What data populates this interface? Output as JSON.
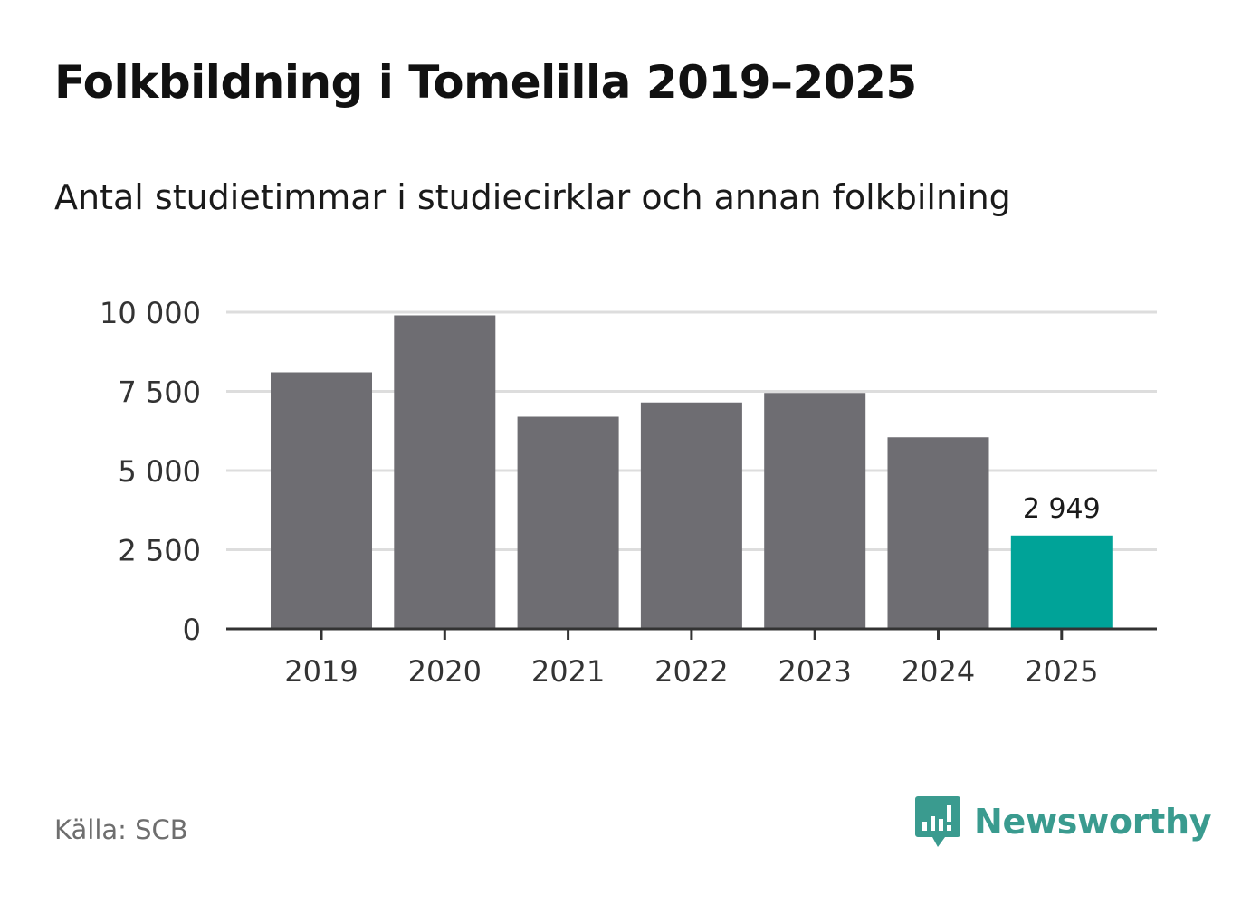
{
  "title": "Folkbildning i Tomelilla 2019–2025",
  "subtitle": "Antal studietimmar i studiecirklar och annan folkbilning",
  "source": "Källa: SCB",
  "brand": {
    "name": "Newsworthy",
    "icon": "newsworthy-logo-icon"
  },
  "colors": {
    "bar": "#6e6d72",
    "highlight": "#00a398",
    "grid": "#dddddd",
    "axis": "#333333",
    "brand": "#3a9b8f"
  },
  "chart_data": {
    "type": "bar",
    "title": "Folkbildning i Tomelilla 2019–2025",
    "subtitle": "Antal studietimmar i studiecirklar och annan folkbilning",
    "xlabel": "",
    "ylabel": "",
    "categories": [
      "2019",
      "2020",
      "2021",
      "2022",
      "2023",
      "2024",
      "2025"
    ],
    "values": [
      8100,
      9900,
      6700,
      7150,
      7450,
      6050,
      2949
    ],
    "ylim": [
      0,
      10000
    ],
    "yticks": [
      0,
      2500,
      5000,
      7500,
      10000
    ],
    "ytick_labels": [
      "0",
      "2 500",
      "5 000",
      "7 500",
      "10 000"
    ],
    "highlight_index": 6,
    "annotations": [
      {
        "category": "2025",
        "label": "2 949"
      }
    ],
    "grid": true
  }
}
